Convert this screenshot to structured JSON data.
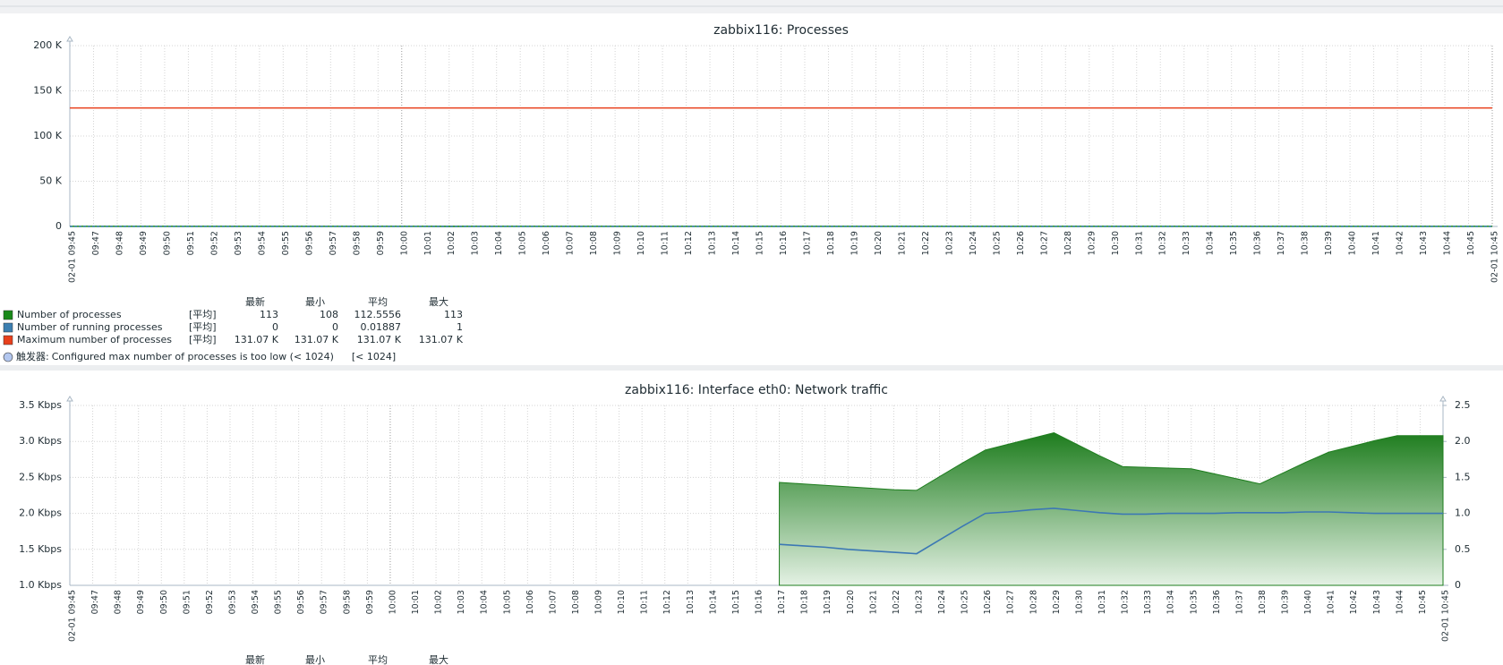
{
  "chart_data": [
    {
      "type": "line",
      "title": "zabbix116: Processes",
      "categories": [
        "02-01 09:45",
        "09:47",
        "09:48",
        "09:49",
        "09:50",
        "09:51",
        "09:52",
        "09:53",
        "09:54",
        "09:55",
        "09:56",
        "09:57",
        "09:58",
        "09:59",
        "10:00",
        "10:01",
        "10:02",
        "10:03",
        "10:04",
        "10:05",
        "10:06",
        "10:07",
        "10:08",
        "10:09",
        "10:10",
        "10:11",
        "10:12",
        "10:13",
        "10:14",
        "10:15",
        "10:16",
        "10:17",
        "10:18",
        "10:19",
        "10:20",
        "10:21",
        "10:22",
        "10:23",
        "10:24",
        "10:25",
        "10:26",
        "10:27",
        "10:28",
        "10:29",
        "10:30",
        "10:31",
        "10:32",
        "10:33",
        "10:34",
        "10:35",
        "10:36",
        "10:37",
        "10:38",
        "10:39",
        "10:40",
        "10:41",
        "10:42",
        "10:43",
        "10:44",
        "10:45",
        "02-01 10:45"
      ],
      "highlighted_ticks": [
        0,
        14,
        60
      ],
      "ylim": [
        0,
        200000
      ],
      "yticks": [
        0,
        {
          "value": 50000,
          "label": "50 K"
        },
        {
          "value": 100000,
          "label": "100 K"
        },
        {
          "value": 150000,
          "label": "150 K"
        },
        {
          "value": 200000,
          "label": "200 K"
        }
      ],
      "grid": true,
      "legend_headers": [
        "最新",
        "最小",
        "平均",
        "最大"
      ],
      "series": [
        {
          "name": "Number of processes",
          "color": "#1a8a1a",
          "dash": false,
          "legend_function": "[平均]",
          "legend_stats": [
            "113",
            "108",
            "112.5556",
            "113"
          ],
          "values": [
            113,
            112,
            113,
            113,
            112,
            113,
            113,
            113,
            112,
            113,
            113,
            113,
            112,
            113,
            113,
            113,
            108,
            113,
            113,
            112,
            113,
            113,
            113,
            112,
            113,
            113,
            113,
            112,
            113,
            113,
            113,
            112,
            113,
            113,
            113,
            112,
            113,
            113,
            113,
            112,
            113,
            113,
            113,
            112,
            113,
            113,
            113,
            112,
            113,
            113,
            113,
            112,
            113,
            113,
            113,
            112,
            113,
            113,
            113,
            113,
            113
          ]
        },
        {
          "name": "Number of running processes",
          "color": "#3c7fb1",
          "dash": true,
          "legend_function": "[平均]",
          "legend_stats": [
            "0",
            "0",
            "0.01887",
            "1"
          ],
          "values": [
            0,
            0,
            0,
            0,
            0,
            0,
            0,
            0,
            0,
            0,
            0,
            0,
            0,
            0,
            0,
            0,
            0,
            0,
            0,
            0,
            0,
            0,
            0,
            0,
            0,
            1,
            0,
            0,
            0,
            0,
            0,
            0,
            0,
            0,
            0,
            0,
            0,
            0,
            0,
            0,
            0,
            0,
            0,
            0,
            0,
            0,
            0,
            0,
            0,
            0,
            0,
            0,
            0,
            0,
            0,
            0,
            0,
            0,
            0,
            0,
            0
          ]
        },
        {
          "name": "Maximum number of processes",
          "color": "#e8401c",
          "dash": false,
          "legend_function": "[平均]",
          "legend_stats": [
            "131.07 K",
            "131.07 K",
            "131.07 K",
            "131.07 K"
          ],
          "values": [
            131070,
            131070,
            131070,
            131070,
            131070,
            131070,
            131070,
            131070,
            131070,
            131070,
            131070,
            131070,
            131070,
            131070,
            131070,
            131070,
            131070,
            131070,
            131070,
            131070,
            131070,
            131070,
            131070,
            131070,
            131070,
            131070,
            131070,
            131070,
            131070,
            131070,
            131070,
            131070,
            131070,
            131070,
            131070,
            131070,
            131070,
            131070,
            131070,
            131070,
            131070,
            131070,
            131070,
            131070,
            131070,
            131070,
            131070,
            131070,
            131070,
            131070,
            131070,
            131070,
            131070,
            131070,
            131070,
            131070,
            131070,
            131070,
            131070,
            131070,
            131070
          ]
        }
      ],
      "trigger": {
        "label": "触发器:",
        "text": "Configured max number of processes is too low (< 1024)",
        "threshold": "[< 1024]"
      }
    },
    {
      "type": "area",
      "title": "zabbix116: Interface eth0: Network traffic",
      "categories": [
        "02-01 09:45",
        "09:47",
        "09:48",
        "09:49",
        "09:50",
        "09:51",
        "09:52",
        "09:53",
        "09:54",
        "09:55",
        "09:56",
        "09:57",
        "09:58",
        "09:59",
        "10:00",
        "10:01",
        "10:02",
        "10:03",
        "10:04",
        "10:05",
        "10:06",
        "10:07",
        "10:08",
        "10:09",
        "10:10",
        "10:11",
        "10:12",
        "10:13",
        "10:14",
        "10:15",
        "10:16",
        "10:17",
        "10:18",
        "10:19",
        "10:20",
        "10:21",
        "10:22",
        "10:23",
        "10:24",
        "10:25",
        "10:26",
        "10:27",
        "10:28",
        "10:29",
        "10:30",
        "10:31",
        "10:32",
        "10:33",
        "10:34",
        "10:35",
        "10:36",
        "10:37",
        "10:38",
        "10:39",
        "10:40",
        "10:41",
        "10:42",
        "10:43",
        "10:44",
        "10:45",
        "02-01 10:45"
      ],
      "highlighted_ticks": [
        0,
        14,
        60
      ],
      "ylim": [
        1000,
        3500
      ],
      "yticks": [
        {
          "value": 1000,
          "label": "1.0 Kbps"
        },
        {
          "value": 1500,
          "label": "1.5 Kbps"
        },
        {
          "value": 2000,
          "label": "2.0 Kbps"
        },
        {
          "value": 2500,
          "label": "2.5 Kbps"
        },
        {
          "value": 3000,
          "label": "3.0 Kbps"
        },
        {
          "value": 3500,
          "label": "3.5 Kbps"
        }
      ],
      "y2lim": [
        0,
        2.5
      ],
      "y2ticks": [
        0,
        0.5,
        {
          "value": 1,
          "label": "1.0"
        },
        1.5,
        {
          "value": 2,
          "label": "2.0"
        },
        2.5
      ],
      "grid": true,
      "legend_headers": [
        "最新",
        "最小",
        "平均",
        "最大"
      ],
      "series": [
        {
          "type": "area",
          "color": "#1e7d1e",
          "values": [
            null,
            null,
            null,
            null,
            null,
            null,
            null,
            null,
            null,
            null,
            null,
            null,
            null,
            null,
            null,
            null,
            null,
            null,
            null,
            null,
            null,
            null,
            null,
            null,
            null,
            null,
            null,
            null,
            null,
            null,
            null,
            2430,
            2410,
            2390,
            2370,
            2350,
            2330,
            2320,
            2510,
            2700,
            2880,
            2960,
            3040,
            3120,
            2960,
            2800,
            2650,
            2640,
            2630,
            2620,
            2550,
            2480,
            2410,
            2560,
            2710,
            2850,
            2930,
            3010,
            3080,
            3080,
            3080
          ]
        },
        {
          "type": "line",
          "axis": "y2",
          "color": "#3c78b4",
          "values": [
            null,
            null,
            null,
            null,
            null,
            null,
            null,
            null,
            null,
            null,
            null,
            null,
            null,
            null,
            null,
            null,
            null,
            null,
            null,
            null,
            null,
            null,
            null,
            null,
            null,
            null,
            null,
            null,
            null,
            null,
            null,
            0.57,
            0.55,
            0.53,
            0.5,
            0.48,
            0.46,
            0.44,
            0.63,
            0.82,
            1.0,
            1.02,
            1.05,
            1.07,
            1.04,
            1.01,
            0.99,
            0.99,
            1.0,
            1.0,
            1.0,
            1.01,
            1.01,
            1.01,
            1.02,
            1.02,
            1.01,
            1.0,
            1.0,
            1.0,
            1.0
          ]
        }
      ]
    }
  ]
}
